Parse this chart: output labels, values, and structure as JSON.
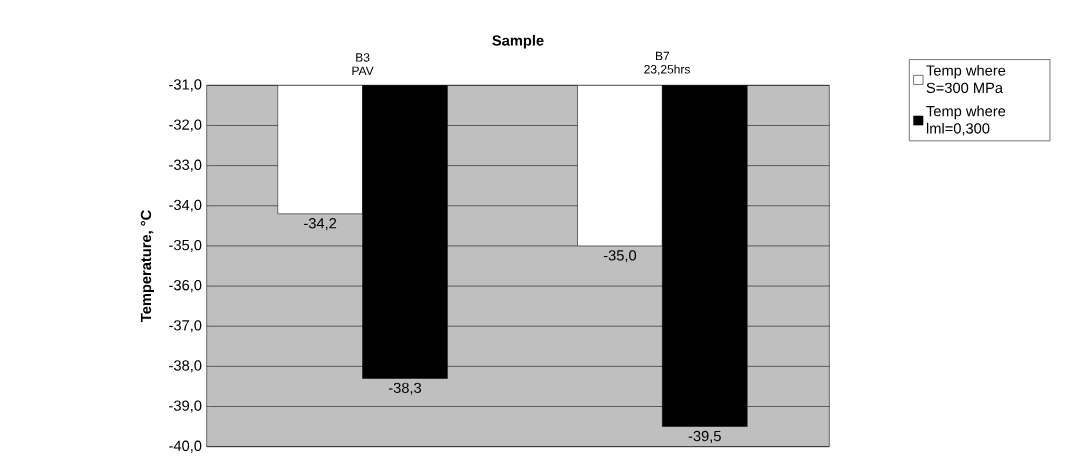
{
  "chart_data": {
    "type": "bar",
    "xlabel": "Sample",
    "ylabel": "Temperature,  °C",
    "categories": [
      "B3 PAV",
      "B7 23,25hrs"
    ],
    "series": [
      {
        "name": "Temp where S=300 MPa",
        "color": "#ffffff",
        "values": [
          -34.2,
          -35.0
        ],
        "value_labels": [
          "-34,2",
          "-35,0"
        ]
      },
      {
        "name": "Temp where lml=0,300",
        "color": "#000000",
        "values": [
          -38.3,
          -39.5
        ],
        "value_labels": [
          "-38,3",
          "-39,5"
        ]
      }
    ],
    "ylim": [
      -40,
      -31
    ],
    "yticks": [
      {
        "value": -40,
        "label": "-40,0"
      },
      {
        "value": -39,
        "label": "-39,0"
      },
      {
        "value": -38,
        "label": "-38,0"
      },
      {
        "value": -37,
        "label": "-37,0"
      },
      {
        "value": -36,
        "label": "-36,0"
      },
      {
        "value": -35,
        "label": "-35,0"
      },
      {
        "value": -34,
        "label": "-34,0"
      },
      {
        "value": -33,
        "label": "-33,0"
      },
      {
        "value": -32,
        "label": "-32,0"
      },
      {
        "value": -31,
        "label": "-31,0"
      }
    ],
    "grid": "y",
    "legend": "right"
  }
}
